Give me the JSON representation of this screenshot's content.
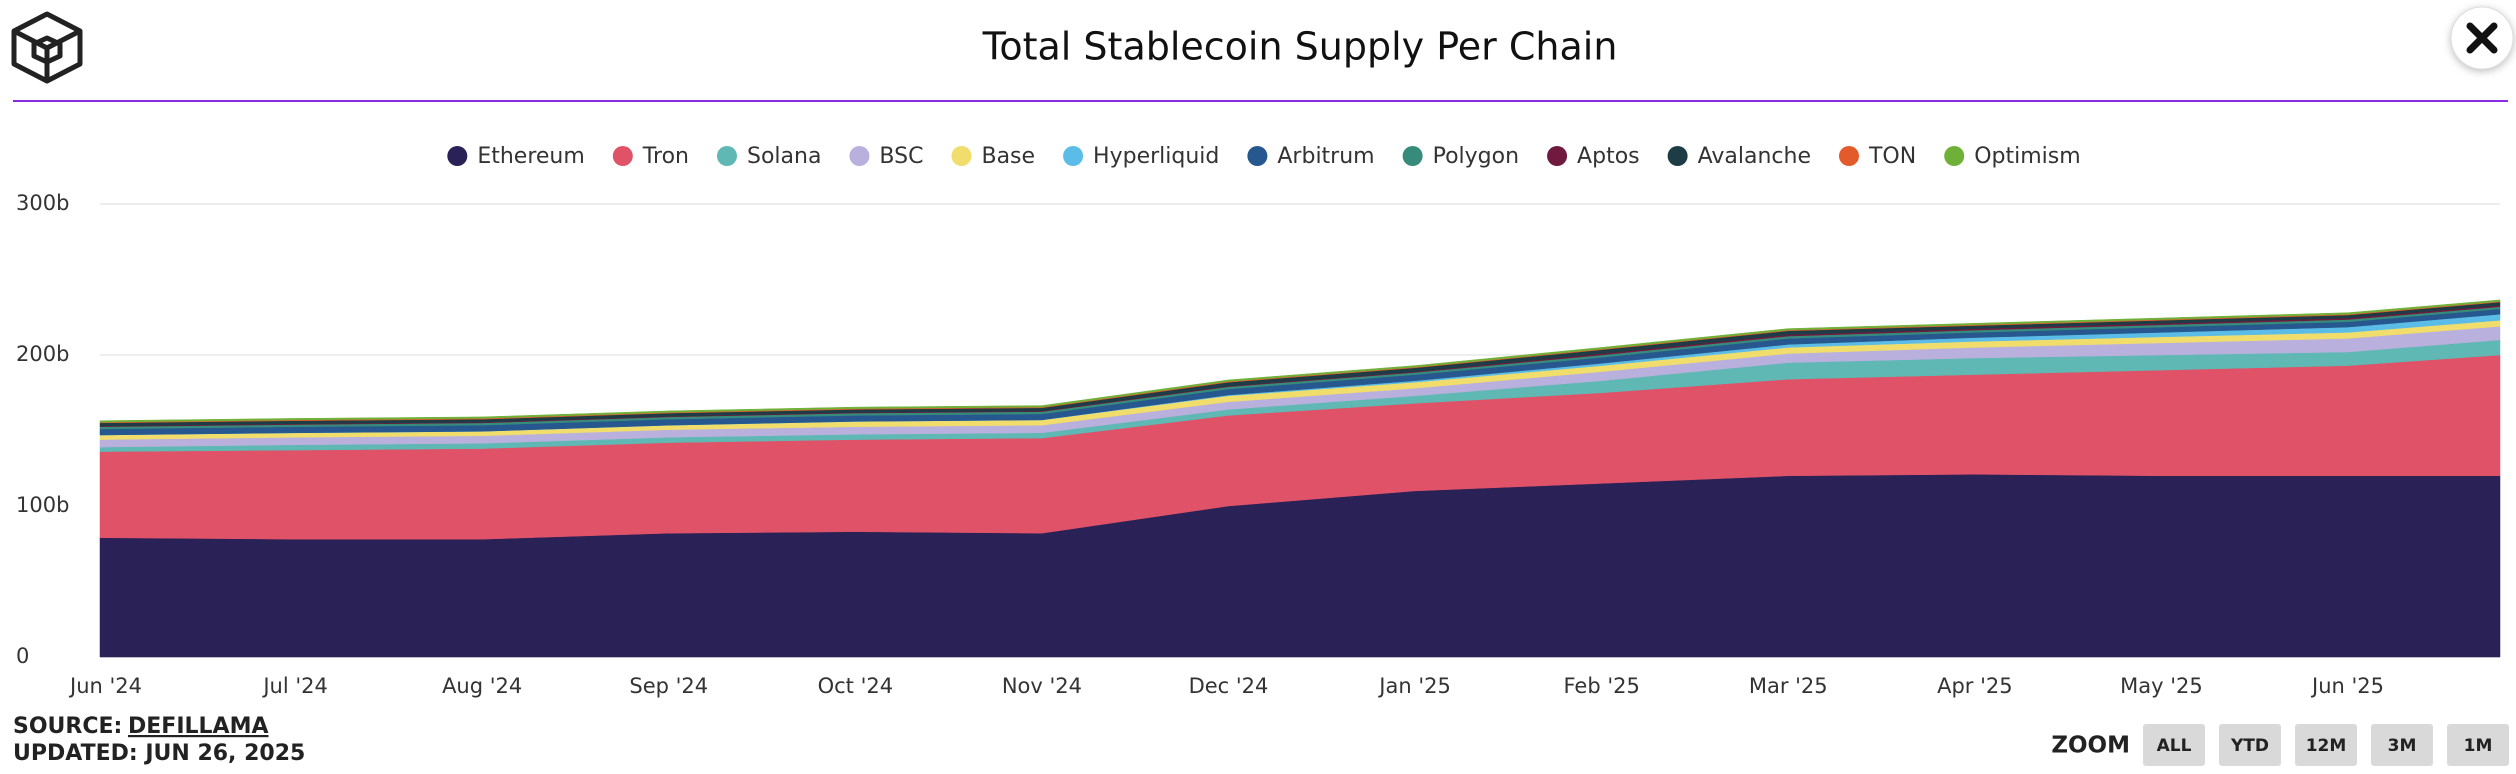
{
  "chart_data": {
    "type": "stacked_area",
    "title": "Total Stablecoin Supply Per Chain",
    "categories": [
      "Jun '24",
      "Jul '24",
      "Aug '24",
      "Sep '24",
      "Oct '24",
      "Nov '24",
      "Dec '24",
      "Jan '25",
      "Feb '25",
      "Mar '25",
      "Apr '25",
      "May '25",
      "Jun '25",
      null
    ],
    "ylim": [
      0,
      300
    ],
    "yticks": [
      0,
      {
        "value": 100,
        "label": "100b"
      },
      {
        "value": 200,
        "label": "200b"
      },
      {
        "value": 300,
        "label": "300b"
      }
    ],
    "grid": true,
    "legend": "top",
    "series": [
      {
        "name": "Ethereum",
        "color": "#2a2157",
        "values": [
          79,
          78,
          78,
          82,
          83,
          82,
          100,
          110,
          115,
          120,
          121,
          120,
          120,
          120
        ]
      },
      {
        "name": "Tron",
        "color": "#e05267",
        "values": [
          57,
          59,
          60,
          60,
          61,
          63,
          60,
          58,
          60,
          64,
          66,
          70,
          73,
          80
        ]
      },
      {
        "name": "Solana",
        "color": "#5fb8b4",
        "values": [
          3,
          3.5,
          3.5,
          3.5,
          3.5,
          3.5,
          4,
          5,
          8,
          11,
          11,
          10,
          9,
          10
        ]
      },
      {
        "name": "BSC",
        "color": "#b9b0dd",
        "values": [
          5,
          5,
          5,
          5,
          5,
          5,
          5,
          5,
          6,
          6,
          7,
          8,
          9,
          9
        ]
      },
      {
        "name": "Base",
        "color": "#f1dd6c",
        "values": [
          3,
          3,
          3,
          3,
          3.5,
          3.5,
          4,
          4,
          4,
          4,
          4,
          4,
          4,
          4
        ]
      },
      {
        "name": "Hyperliquid",
        "color": "#5bbde7",
        "values": [
          0,
          0,
          0,
          0,
          0,
          0,
          0.5,
          1,
          1.5,
          2,
          2.5,
          3,
          3.5,
          4
        ]
      },
      {
        "name": "Arbitrum",
        "color": "#27578f",
        "values": [
          4,
          4,
          4,
          4,
          4,
          4,
          4,
          4,
          4,
          4,
          3.5,
          3.5,
          3.5,
          3.5
        ]
      },
      {
        "name": "Polygon",
        "color": "#368b7b",
        "values": [
          1.5,
          1.5,
          1.5,
          1.5,
          1.5,
          1.5,
          1.5,
          1.5,
          1.5,
          1.5,
          1.5,
          1.5,
          1.5,
          1.5
        ]
      },
      {
        "name": "Aptos",
        "color": "#6f1a3e",
        "values": [
          0.5,
          0.5,
          0.5,
          0.5,
          0.5,
          0.5,
          0.5,
          0.5,
          1,
          1,
          1,
          1,
          1,
          1
        ]
      },
      {
        "name": "Avalanche",
        "color": "#1d3c45",
        "values": [
          2,
          2,
          2,
          2,
          2,
          2,
          2.5,
          2.5,
          2.5,
          2.5,
          2,
          2,
          2,
          2
        ]
      },
      {
        "name": "TON",
        "color": "#e35a2b",
        "values": [
          0.5,
          0.5,
          0.5,
          0.5,
          0.5,
          0.5,
          0.5,
          0.5,
          0.5,
          0.5,
          0.5,
          0.5,
          0.5,
          0.5
        ]
      },
      {
        "name": "Optimism",
        "color": "#6fb138",
        "values": [
          1,
          1,
          1,
          1,
          1,
          1,
          1,
          1,
          1,
          1,
          1,
          1,
          1,
          1
        ]
      }
    ]
  },
  "footer": {
    "source_label": "SOURCE:",
    "source": "DEFILLAMA",
    "updated": "UPDATED: JUN 26, 2025"
  },
  "zoom": {
    "label": "ZOOM",
    "buttons": [
      "ALL",
      "YTD",
      "12M",
      "3M",
      "1M"
    ]
  }
}
